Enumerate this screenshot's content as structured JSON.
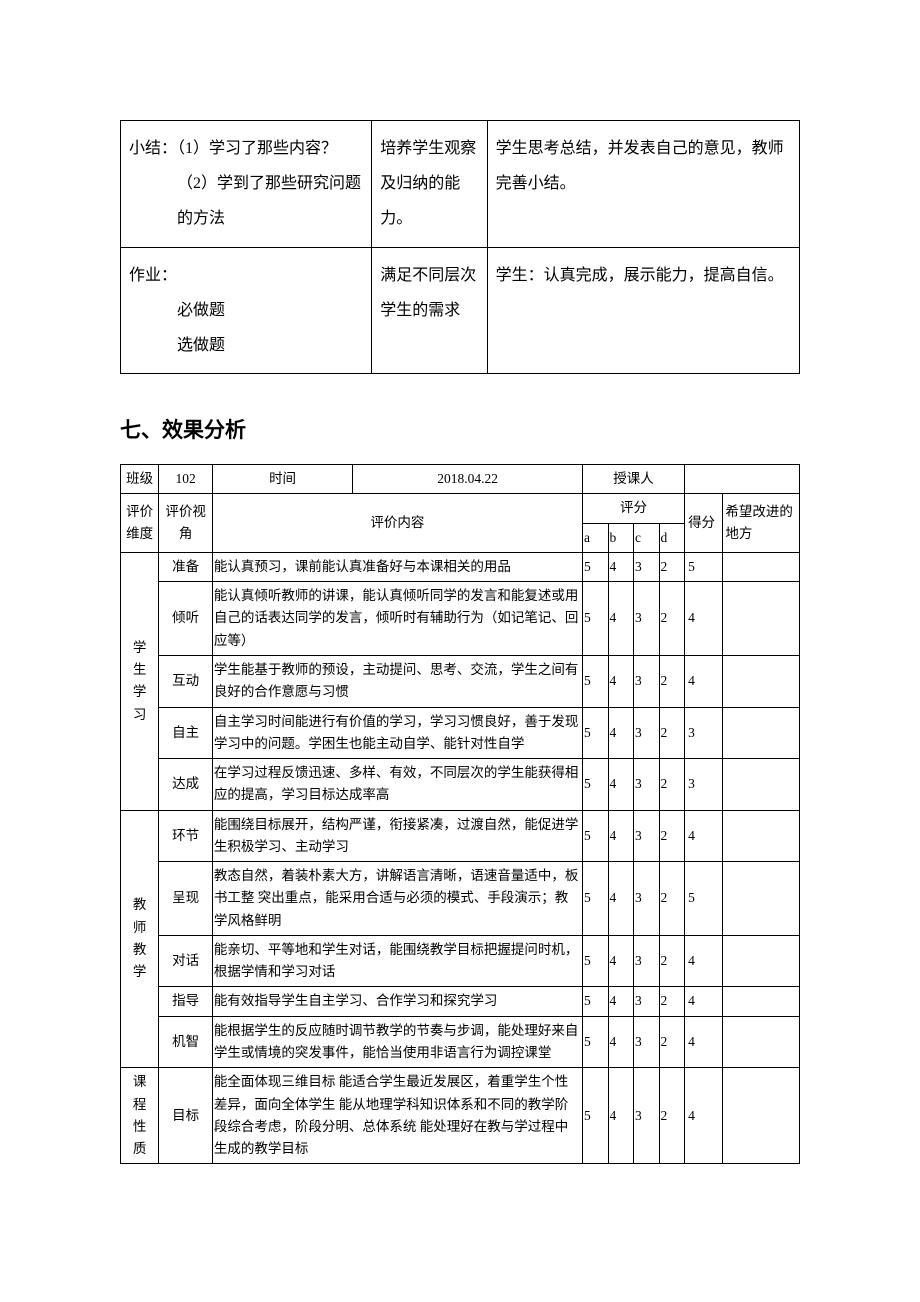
{
  "upper": {
    "rows": [
      {
        "c1_lines": [
          "小结：（1）学习了那些内容？",
          "（2）学到了那些研究问题的方法"
        ],
        "c1_indents": [
          false,
          true
        ],
        "c2": "培养学生观察及归纳的能力。",
        "c3": "学生思考总结，并发表自己的意见，教师完善小结。"
      },
      {
        "c1_lines": [
          "作业：",
          "必做题",
          "选做题"
        ],
        "c1_indents": [
          false,
          true,
          true
        ],
        "c2": "满足不同层次学生的需求",
        "c3": "学生：认真完成，展示能力，提高自信。"
      }
    ]
  },
  "heading": "七、效果分析",
  "eval": {
    "header1": {
      "class_label": "班级",
      "class_value": "102",
      "time_label": "时间",
      "time_value": "2018.04.22",
      "instructor_label": "授课人",
      "instructor_value": ""
    },
    "header2": {
      "dimension": "评价维度",
      "angle": "评价视角",
      "content": "评价内容",
      "rating": "评分",
      "score": "得分",
      "improve": "希望改进的地方",
      "a": "a",
      "b": "b",
      "c": "c",
      "d": "d"
    },
    "categories": [
      {
        "name": "学生学习",
        "rows": [
          {
            "aspect": "准备",
            "content": "能认真预习，课前能认真准备好与本课相关的用品",
            "a": "5",
            "b": "4",
            "c": "3",
            "d": "2",
            "score": "5",
            "improve": ""
          },
          {
            "aspect": "倾听",
            "content": "能认真倾听教师的讲课，能认真倾听同学的发言和能复述或用自己的话表达同学的发言，倾听时有辅助行为（如记笔记、回应等）",
            "a": "5",
            "b": "4",
            "c": "3",
            "d": "2",
            "score": "4",
            "improve": ""
          },
          {
            "aspect": "互动",
            "content": "学生能基于教师的预设，主动提问、思考、交流，学生之间有良好的合作意愿与习惯",
            "a": "5",
            "b": "4",
            "c": "3",
            "d": "2",
            "score": "4",
            "improve": ""
          },
          {
            "aspect": "自主",
            "content": "自主学习时间能进行有价值的学习，学习习惯良好，善于发现学习中的问题。学困生也能主动自学、能针对性自学",
            "a": "5",
            "b": "4",
            "c": "3",
            "d": "2",
            "score": "3",
            "improve": ""
          },
          {
            "aspect": "达成",
            "content": "在学习过程反馈迅速、多样、有效，不同层次的学生能获得相应的提高，学习目标达成率高",
            "a": "5",
            "b": "4",
            "c": "3",
            "d": "2",
            "score": "3",
            "improve": ""
          }
        ]
      },
      {
        "name": "教师教学",
        "rows": [
          {
            "aspect": "环节",
            "content": "能围绕目标展开，结构严谨，衔接紧凑，过渡自然，能促进学生积极学习、主动学习",
            "a": "5",
            "b": "4",
            "c": "3",
            "d": "2",
            "score": "4",
            "improve": ""
          },
          {
            "aspect": "呈现",
            "content": "教态自然，着装朴素大方，讲解语言清晰，语速音量适中，板书工整  突出重点，能采用合适与必须的模式、手段演示；教学风格鲜明",
            "a": "5",
            "b": "4",
            "c": "3",
            "d": "2",
            "score": "5",
            "improve": ""
          },
          {
            "aspect": "对话",
            "content": "能亲切、平等地和学生对话，能围绕教学目标把握提问时机，根据学情和学习对话",
            "a": "5",
            "b": "4",
            "c": "3",
            "d": "2",
            "score": "4",
            "improve": ""
          },
          {
            "aspect": "指导",
            "content": "能有效指导学生自主学习、合作学习和探究学习",
            "a": "5",
            "b": "4",
            "c": "3",
            "d": "2",
            "score": "4",
            "improve": ""
          },
          {
            "aspect": "机智",
            "content": "能根据学生的反应随时调节教学的节奏与步调，能处理好来自学生或情境的突发事件，能恰当使用非语言行为调控课堂",
            "a": "5",
            "b": "4",
            "c": "3",
            "d": "2",
            "score": "4",
            "improve": ""
          }
        ]
      },
      {
        "name": "课程性质",
        "rows": [
          {
            "aspect": "目标",
            "content": "能全面体现三维目标  能适合学生最近发展区，着重学生个性差异，面向全体学生  能从地理学科知识体系和不同的教学阶段综合考虑，阶段分明、总体系统  能处理好在教与学过程中生成的教学目标",
            "a": "5",
            "b": "4",
            "c": "3",
            "d": "2",
            "score": "4",
            "improve": ""
          }
        ]
      }
    ]
  }
}
